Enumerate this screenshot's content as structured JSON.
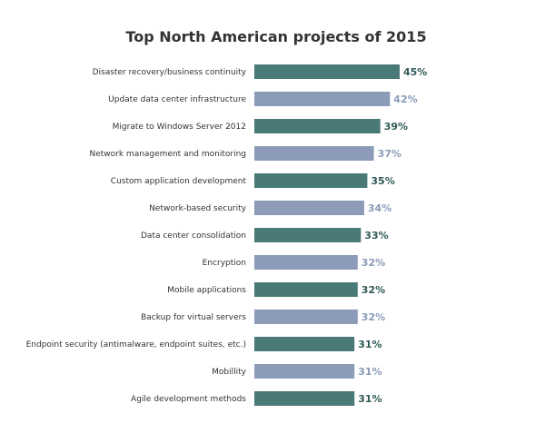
{
  "chart_data": {
    "type": "bar",
    "orientation": "horizontal",
    "title": "Top North American projects of 2015",
    "xlabel": "",
    "ylabel": "",
    "xlim": [
      0,
      50
    ],
    "grid": false,
    "value_suffix": "%",
    "categories": [
      "Disaster recovery/business continuity",
      "Update data center infrastructure",
      "Migrate to Windows Server 2012",
      "Network management and monitoring",
      "Custom application development",
      "Network-based security",
      "Data center consolidation",
      "Encryption",
      "Mobile applications",
      "Backup for virtual servers",
      "Endpoint security (antimalware, endpoint suites, etc.)",
      "Mobillity",
      "Agile development methods"
    ],
    "values": [
      45,
      42,
      39,
      37,
      35,
      34,
      33,
      32,
      32,
      32,
      31,
      31,
      31
    ],
    "value_labels": [
      "45%",
      "42%",
      "39%",
      "37%",
      "35%",
      "34%",
      "33%",
      "32%",
      "32%",
      "32%",
      "31%",
      "31%",
      "31%"
    ],
    "bar_colors": [
      "#4a7a78",
      "#8b9bb8"
    ],
    "label_colors": [
      "#2f5956",
      "#8b9bb8"
    ]
  }
}
